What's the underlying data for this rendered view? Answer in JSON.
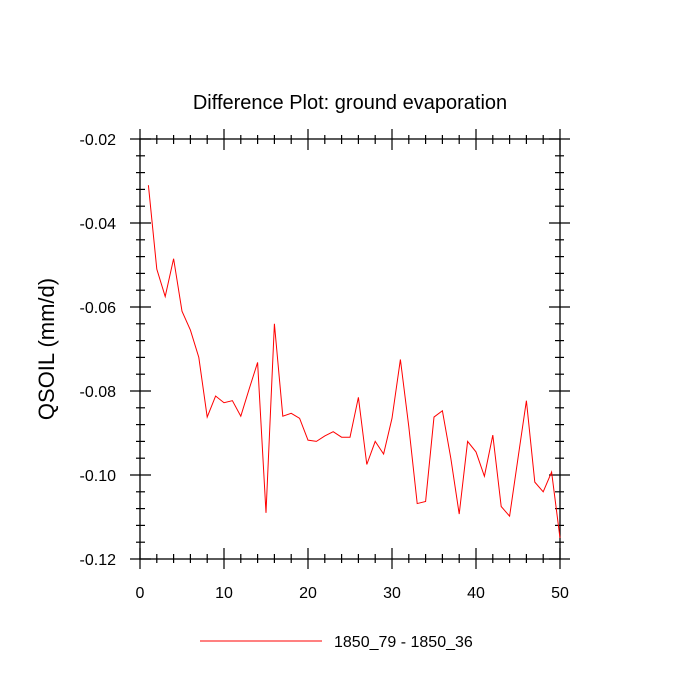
{
  "chart_data": {
    "type": "line",
    "title": "Difference Plot: ground evaporation",
    "xlabel": "",
    "ylabel": "QSOIL  (mm/d)",
    "xlim": [
      0,
      50
    ],
    "ylim": [
      -0.12,
      -0.02
    ],
    "xticks": [
      0,
      10,
      20,
      30,
      40,
      50
    ],
    "xtick_labels": [
      "0",
      "10",
      "20",
      "30",
      "40",
      "50"
    ],
    "yticks": [
      -0.02,
      -0.04,
      -0.06,
      -0.08,
      -0.1,
      -0.12
    ],
    "ytick_labels": [
      "-0.02",
      "-0.04",
      "-0.06",
      "-0.08",
      "-0.10",
      "-0.12"
    ],
    "legend_position": "bottom-center",
    "grid": false,
    "series": [
      {
        "name": "1850_79 - 1850_36",
        "color": "#ff0000",
        "x": [
          1,
          2,
          3,
          4,
          5,
          6,
          7,
          8,
          9,
          10,
          11,
          12,
          13,
          14,
          15,
          16,
          17,
          18,
          19,
          20,
          21,
          22,
          23,
          24,
          25,
          26,
          27,
          28,
          29,
          30,
          31,
          32,
          33,
          34,
          35,
          36,
          37,
          38,
          39,
          40,
          41,
          42,
          43,
          44,
          45,
          46,
          47,
          48,
          49,
          50
        ],
        "values": [
          -0.031,
          -0.051,
          -0.0575,
          -0.0485,
          -0.061,
          -0.0655,
          -0.072,
          -0.0862,
          -0.0812,
          -0.0828,
          -0.0823,
          -0.086,
          -0.0795,
          -0.0732,
          -0.109,
          -0.064,
          -0.086,
          -0.0853,
          -0.0865,
          -0.0917,
          -0.092,
          -0.0907,
          -0.0897,
          -0.091,
          -0.091,
          -0.0815,
          -0.0975,
          -0.092,
          -0.095,
          -0.0865,
          -0.0725,
          -0.0885,
          -0.1068,
          -0.1063,
          -0.0862,
          -0.0847,
          -0.096,
          -0.1093,
          -0.092,
          -0.0945,
          -0.1003,
          -0.0905,
          -0.1075,
          -0.1098,
          -0.096,
          -0.0823,
          -0.1017,
          -0.104,
          -0.0993,
          -0.115
        ]
      }
    ]
  }
}
